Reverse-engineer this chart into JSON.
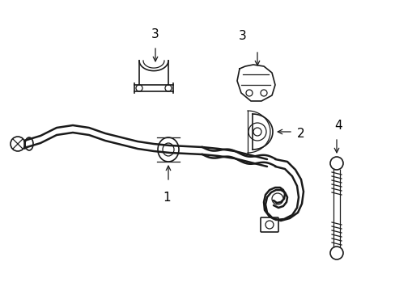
{
  "background_color": "#ffffff",
  "line_color": "#1a1a1a",
  "label_color": "#000000",
  "figsize": [
    4.89,
    3.6
  ],
  "dpi": 100,
  "lw_bar": 1.8,
  "lw_detail": 1.2,
  "lw_thin": 0.9
}
